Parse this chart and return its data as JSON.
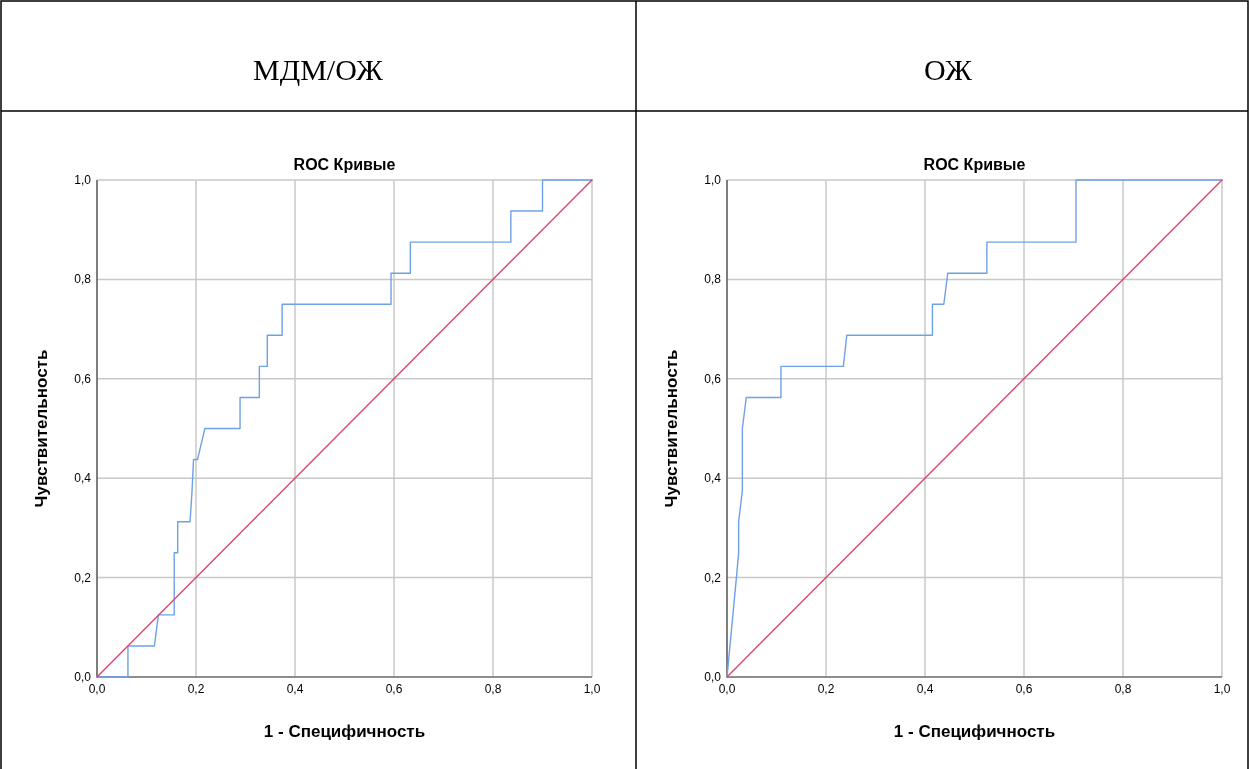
{
  "chart_data": [
    {
      "type": "line",
      "title": "МДМ/ОЖ",
      "subtitle": "ROC Кривые",
      "xlabel": "1 - Специфичность",
      "ylabel": "Чувствительность",
      "xlim": [
        0,
        1
      ],
      "ylim": [
        0,
        1
      ],
      "grid": true,
      "xticks": [
        {
          "value": 0,
          "label": "0,0"
        },
        {
          "value": 0.2,
          "label": "0,2"
        },
        {
          "value": 0.4,
          "label": "0,4"
        },
        {
          "value": 0.6,
          "label": "0,6"
        },
        {
          "value": 0.8,
          "label": "0,8"
        },
        {
          "value": 1,
          "label": "1,0"
        }
      ],
      "yticks": [
        {
          "value": 0,
          "label": "0,0"
        },
        {
          "value": 0.2,
          "label": "0,2"
        },
        {
          "value": 0.4,
          "label": "0,4"
        },
        {
          "value": 0.6,
          "label": "0,6"
        },
        {
          "value": 0.8,
          "label": "0,8"
        },
        {
          "value": 1,
          "label": "1,0"
        }
      ],
      "series": [
        {
          "color": "#6fa1e6",
          "x": [
            0,
            0.0625,
            0.0625,
            0.116,
            0.124,
            0.156,
            0.156,
            0.163,
            0.163,
            0.188,
            0.192,
            0.195,
            0.203,
            0.218,
            0.289,
            0.289,
            0.328,
            0.328,
            0.344,
            0.344,
            0.374,
            0.374,
            0.594,
            0.594,
            0.633,
            0.633,
            0.836,
            0.836,
            0.9,
            0.9,
            1
          ],
          "values": [
            0,
            0,
            0.0625,
            0.0625,
            0.125,
            0.125,
            0.25,
            0.25,
            0.3125,
            0.3125,
            0.375,
            0.4375,
            0.4375,
            0.5,
            0.5,
            0.5625,
            0.5625,
            0.625,
            0.625,
            0.6875,
            0.6875,
            0.75,
            0.75,
            0.8125,
            0.8125,
            0.875,
            0.875,
            0.9375,
            0.9375,
            1,
            1
          ]
        },
        {
          "color": "#e0466a",
          "x": [
            0,
            1
          ],
          "values": [
            0,
            1
          ]
        }
      ]
    },
    {
      "type": "line",
      "title": "ОЖ",
      "subtitle": "ROC Кривые",
      "xlabel": "1 - Специфичность",
      "ylabel": "Чувствительность",
      "xlim": [
        0,
        1
      ],
      "ylim": [
        0,
        1
      ],
      "grid": true,
      "xticks": [
        {
          "value": 0,
          "label": "0,0"
        },
        {
          "value": 0.2,
          "label": "0,2"
        },
        {
          "value": 0.4,
          "label": "0,4"
        },
        {
          "value": 0.6,
          "label": "0,6"
        },
        {
          "value": 0.8,
          "label": "0,8"
        },
        {
          "value": 1,
          "label": "1,0"
        }
      ],
      "yticks": [
        {
          "value": 0,
          "label": "0,0"
        },
        {
          "value": 0.2,
          "label": "0,2"
        },
        {
          "value": 0.4,
          "label": "0,4"
        },
        {
          "value": 0.6,
          "label": "0,6"
        },
        {
          "value": 0.8,
          "label": "0,8"
        },
        {
          "value": 1,
          "label": "1,0"
        }
      ],
      "series": [
        {
          "color": "#6fa1e6",
          "x": [
            0,
            0.019,
            0.0235,
            0.0235,
            0.031,
            0.031,
            0.039,
            0.109,
            0.109,
            0.235,
            0.242,
            0.415,
            0.415,
            0.438,
            0.446,
            0.525,
            0.525,
            0.705,
            0.705,
            1
          ],
          "values": [
            0,
            0.2,
            0.25,
            0.3125,
            0.375,
            0.5,
            0.5625,
            0.5625,
            0.625,
            0.625,
            0.6875,
            0.6875,
            0.75,
            0.75,
            0.8125,
            0.8125,
            0.875,
            0.875,
            1,
            1
          ]
        },
        {
          "color": "#e0466a",
          "x": [
            0,
            1
          ],
          "values": [
            0,
            1
          ]
        }
      ]
    }
  ]
}
